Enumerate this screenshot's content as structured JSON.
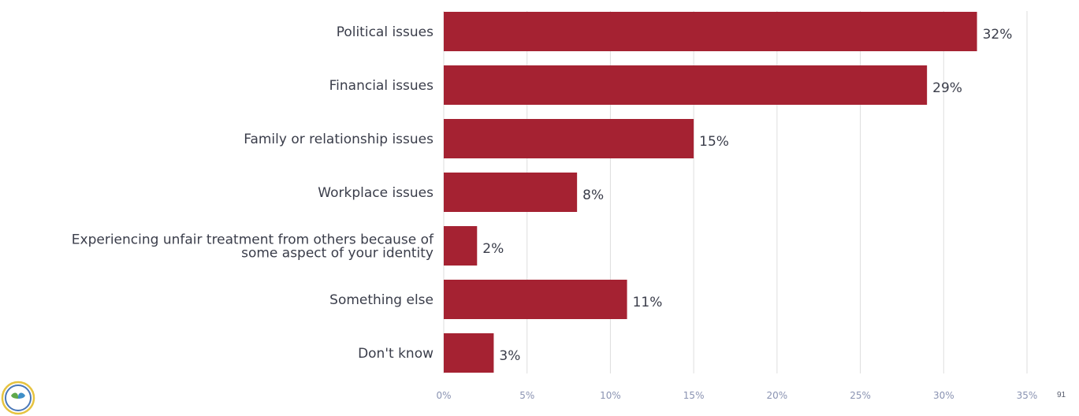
{
  "chart_data": {
    "type": "bar",
    "orientation": "horizontal",
    "categories": [
      [
        "Political issues"
      ],
      [
        "Financial issues"
      ],
      [
        "Family or relationship issues"
      ],
      [
        "Workplace issues"
      ],
      [
        "Experiencing unfair treatment from others because of",
        "some aspect of your identity"
      ],
      [
        "Something else"
      ],
      [
        "Don't know"
      ]
    ],
    "values": [
      32,
      29,
      15,
      8,
      2,
      11,
      3
    ],
    "value_labels": [
      "32%",
      "29%",
      "15%",
      "8%",
      "2%",
      "11%",
      "3%"
    ],
    "xlim": [
      0,
      35
    ],
    "xticks": [
      0,
      5,
      10,
      15,
      20,
      25,
      30,
      35
    ],
    "xtick_labels": [
      "0%",
      "5%",
      "10%",
      "15%",
      "20%",
      "25%",
      "30%",
      "35%"
    ],
    "grid": true,
    "title": "",
    "xlabel": "",
    "ylabel": ""
  },
  "page": {
    "number": "91"
  },
  "colors": {
    "bar": "#a52232",
    "grid": "#dedede",
    "tick_text": "#8a93b2",
    "label_text": "#3a3d4a"
  },
  "icons": {
    "logo": "leaf-logo-icon"
  }
}
